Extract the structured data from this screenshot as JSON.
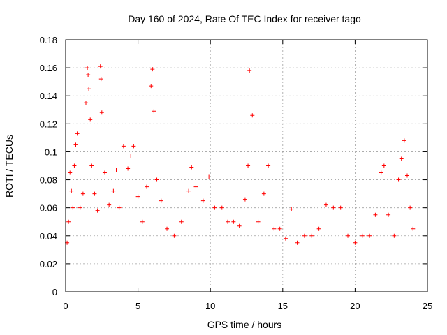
{
  "chart_data": {
    "type": "scatter",
    "title": "Day 160 of 2024, Rate Of TEC Index for receiver tago",
    "xlabel": "GPS time / hours",
    "ylabel": "ROTI / TECUs",
    "xlim": [
      0,
      25
    ],
    "ylim": [
      0,
      0.18
    ],
    "x_ticks": [
      0,
      5,
      10,
      15,
      20,
      25
    ],
    "x_tick_labels": [
      "0",
      "5",
      "10",
      "15",
      "20",
      "25"
    ],
    "y_ticks": [
      0,
      0.02,
      0.04,
      0.06,
      0.08,
      0.1,
      0.12,
      0.14,
      0.16,
      0.18
    ],
    "y_tick_labels": [
      "0",
      "0.02",
      "0.04",
      "0.06",
      "0.08",
      "0.1",
      "0.12",
      "0.14",
      "0.16",
      "0.18"
    ],
    "grid": true,
    "marker": "+",
    "color": "#ff0000",
    "series": [
      {
        "name": "ROTI",
        "x": [
          0.1,
          0.2,
          0.3,
          0.4,
          0.5,
          0.6,
          0.7,
          0.8,
          1.0,
          1.2,
          1.4,
          1.5,
          1.55,
          1.6,
          1.7,
          1.8,
          2.0,
          2.2,
          2.4,
          2.45,
          2.5,
          2.7,
          3.0,
          3.3,
          3.5,
          3.7,
          4.0,
          4.3,
          4.5,
          4.7,
          5.0,
          5.3,
          5.6,
          5.9,
          6.0,
          6.1,
          6.3,
          6.6,
          7.0,
          7.5,
          8.0,
          8.5,
          8.7,
          9.0,
          9.5,
          9.9,
          10.3,
          10.8,
          11.2,
          11.6,
          12.0,
          12.4,
          12.6,
          12.7,
          12.9,
          13.3,
          13.7,
          14.0,
          14.4,
          14.8,
          15.2,
          15.6,
          16.0,
          16.5,
          17.0,
          17.5,
          18.0,
          18.5,
          19.0,
          19.5,
          20.0,
          20.5,
          21.0,
          21.4,
          21.8,
          22.0,
          22.3,
          22.7,
          23.0,
          23.2,
          23.4,
          23.6,
          23.8,
          24.0
        ],
        "y": [
          0.035,
          0.05,
          0.085,
          0.072,
          0.06,
          0.09,
          0.105,
          0.113,
          0.06,
          0.07,
          0.135,
          0.16,
          0.155,
          0.145,
          0.123,
          0.09,
          0.07,
          0.058,
          0.161,
          0.152,
          0.128,
          0.085,
          0.062,
          0.072,
          0.087,
          0.06,
          0.104,
          0.088,
          0.097,
          0.104,
          0.068,
          0.05,
          0.075,
          0.147,
          0.159,
          0.129,
          0.08,
          0.065,
          0.045,
          0.04,
          0.05,
          0.072,
          0.089,
          0.075,
          0.065,
          0.082,
          0.06,
          0.06,
          0.05,
          0.05,
          0.047,
          0.066,
          0.09,
          0.158,
          0.126,
          0.05,
          0.07,
          0.09,
          0.045,
          0.045,
          0.038,
          0.059,
          0.035,
          0.04,
          0.04,
          0.045,
          0.062,
          0.06,
          0.06,
          0.04,
          0.035,
          0.04,
          0.04,
          0.055,
          0.085,
          0.09,
          0.055,
          0.04,
          0.08,
          0.095,
          0.108,
          0.083,
          0.06,
          0.045
        ]
      }
    ]
  }
}
